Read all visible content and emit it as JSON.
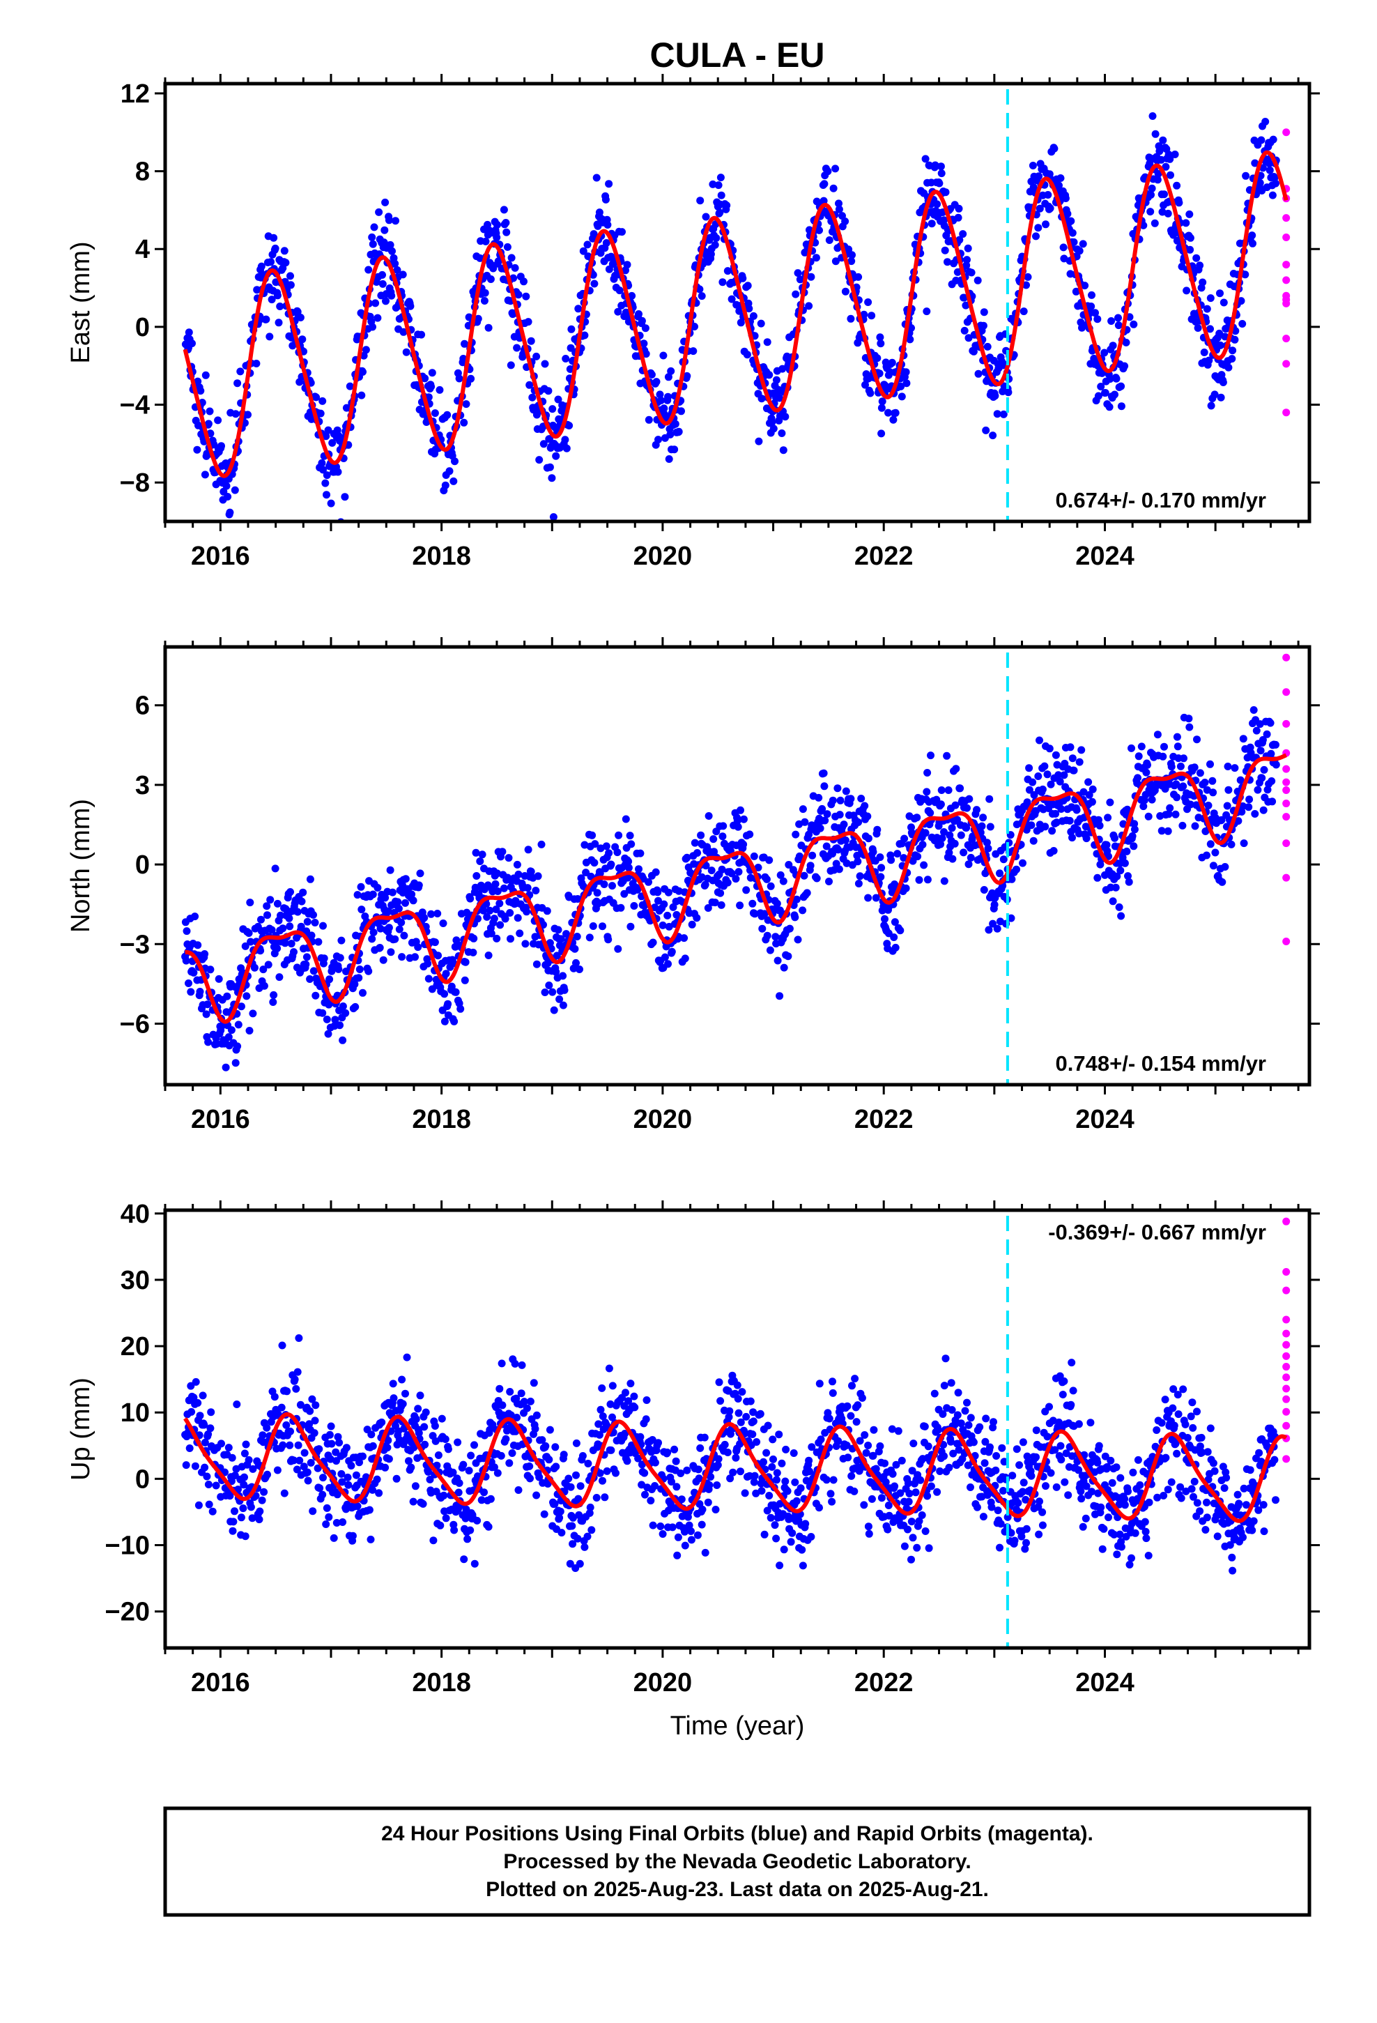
{
  "title": "CULA - EU",
  "xlabel": "Time (year)",
  "footer": {
    "line1": "24 Hour Positions Using Final Orbits (blue) and Rapid Orbits (magenta).",
    "line2": "Processed by the Nevada Geodetic Laboratory.",
    "line3": "Plotted on 2025-Aug-23. Last data on 2025-Aug-21."
  },
  "colors": {
    "final_points": "#0000ff",
    "rapid_points": "#ff00ff",
    "model_line": "#ff0000",
    "event_line": "#00e5ff"
  },
  "chart_data": [
    {
      "type": "scatter",
      "panel": "east",
      "ylabel": "East (mm)",
      "rate_text": "0.674+/- 0.170 mm/yr",
      "rate_position": "bottom-right",
      "xlim": [
        2015.5,
        2025.85
      ],
      "ylim": [
        -10,
        12.5
      ],
      "x_ticks": [
        2016,
        2018,
        2020,
        2022,
        2024
      ],
      "x_tick_labels": [
        "2016",
        "2018",
        "2020",
        "2022",
        "2024"
      ],
      "y_ticks": [
        -8,
        -4,
        0,
        4,
        8,
        12
      ],
      "y_tick_labels": [
        "−8",
        "−4",
        "0",
        "4",
        "8",
        "12"
      ],
      "event_line_x": 2023.12,
      "data_start": 2015.68,
      "final_end": 2025.55,
      "last_data": 2025.64,
      "model": {
        "offset": -2.8,
        "rate": 0.674,
        "ref_year": 2015.68,
        "amplitude": 5.0,
        "phase": 2016.5,
        "semi_amplitude": 0.6,
        "semi_phase": 2016.38
      },
      "scatter_sd": 1.2,
      "rapid_points": [
        10.0,
        7.1,
        6.6,
        5.6,
        4.6,
        3.2,
        2.4,
        1.6,
        1.2,
        1.4,
        -0.6,
        -1.9,
        -4.4
      ]
    },
    {
      "type": "scatter",
      "panel": "north",
      "ylabel": "North (mm)",
      "rate_text": "0.748+/- 0.154 mm/yr",
      "rate_position": "bottom-right",
      "xlim": [
        2015.5,
        2025.85
      ],
      "ylim": [
        -8.3,
        8.2
      ],
      "x_ticks": [
        2016,
        2018,
        2020,
        2022,
        2024
      ],
      "x_tick_labels": [
        "2016",
        "2018",
        "2020",
        "2022",
        "2024"
      ],
      "y_ticks": [
        -6,
        -3,
        0,
        3,
        6
      ],
      "y_tick_labels": [
        "−6",
        "−3",
        "0",
        "3",
        "6"
      ],
      "event_line_x": 2023.12,
      "data_start": 2015.68,
      "final_end": 2025.55,
      "last_data": 2025.64,
      "model": {
        "offset": -4.3,
        "rate": 0.748,
        "ref_year": 2015.68,
        "amplitude": 1.4,
        "phase": 2016.55,
        "semi_amplitude": 0.5,
        "semi_phase": 2016.3
      },
      "scatter_sd": 0.95,
      "rapid_points": [
        7.8,
        6.5,
        5.3,
        4.2,
        3.6,
        3.1,
        2.8,
        2.3,
        1.8,
        0.8,
        -0.5,
        -2.9
      ]
    },
    {
      "type": "scatter",
      "panel": "up",
      "ylabel": "Up (mm)",
      "rate_text": "-0.369+/- 0.667 mm/yr",
      "rate_position": "top-right",
      "xlim": [
        2015.5,
        2025.85
      ],
      "ylim": [
        -25.5,
        40.5
      ],
      "x_ticks": [
        2016,
        2018,
        2020,
        2022,
        2024
      ],
      "x_tick_labels": [
        "2016",
        "2018",
        "2020",
        "2022",
        "2024"
      ],
      "y_ticks": [
        -20,
        -10,
        0,
        10,
        20,
        30,
        40
      ],
      "y_tick_labels": [
        "−20",
        "−10",
        "0",
        "10",
        "20",
        "30",
        "40"
      ],
      "event_line_x": 2023.12,
      "data_start": 2015.68,
      "final_end": 2025.55,
      "last_data": 2025.64,
      "model": {
        "offset": 3.3,
        "rate": -0.369,
        "ref_year": 2015.68,
        "amplitude": 6.0,
        "phase": 2016.65,
        "semi_amplitude": 1.3,
        "semi_phase": 2016.55
      },
      "scatter_sd": 4.2,
      "rapid_points": [
        38.8,
        31.2,
        28.4,
        24.0,
        21.9,
        20.2,
        18.5,
        16.9,
        15.3,
        13.6,
        12.0,
        10.1,
        8.0,
        6.1,
        3.0
      ]
    }
  ]
}
